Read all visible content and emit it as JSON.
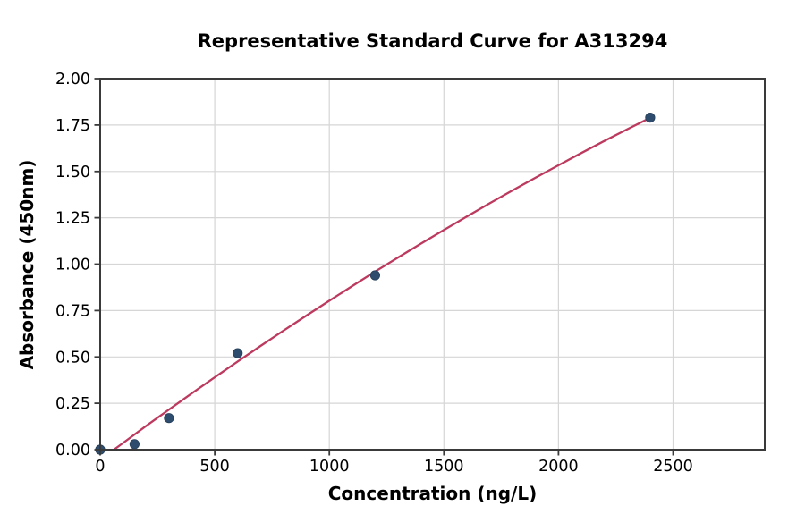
{
  "chart_data": {
    "type": "scatter",
    "title": "Representative Standard Curve for A313294",
    "xlabel": "Concentration (ng/L)",
    "ylabel": "Absorbance (450nm)",
    "xlim": [
      0,
      2900
    ],
    "ylim": [
      0,
      2.0
    ],
    "grid": true,
    "legend": "none",
    "x_ticks": {
      "values": [
        0,
        500,
        1000,
        1500,
        2000,
        2500
      ],
      "labels": [
        "0",
        "500",
        "1000",
        "1500",
        "2000",
        "2500"
      ]
    },
    "y_ticks": {
      "values": [
        0,
        0.25,
        0.5,
        0.75,
        1.0,
        1.25,
        1.5,
        1.75,
        2.0
      ],
      "labels": [
        "0.00",
        "0.25",
        "0.50",
        "0.75",
        "1.00",
        "1.25",
        "1.50",
        "1.75",
        "2.00"
      ]
    },
    "series": [
      {
        "name": "standard-points",
        "type": "scatter",
        "x": [
          0,
          150,
          300,
          600,
          1200,
          2400
        ],
        "y": [
          0.0,
          0.03,
          0.17,
          0.52,
          0.94,
          1.79
        ],
        "color": "#2e4d6e",
        "edge_color": "#263f59",
        "marker": "circle",
        "marker_radius": 5.2
      },
      {
        "name": "fit-curve",
        "type": "line",
        "x": [
          60,
          100,
          200,
          300,
          400,
          500,
          600,
          700,
          800,
          900,
          1000,
          1100,
          1200,
          1300,
          1400,
          1500,
          1600,
          1700,
          1800,
          1900,
          2000,
          2100,
          2200,
          2300,
          2400
        ],
        "y": [
          0.0,
          0.036,
          0.127,
          0.216,
          0.304,
          0.39,
          0.475,
          0.559,
          0.642,
          0.723,
          0.803,
          0.882,
          0.96,
          1.036,
          1.111,
          1.184,
          1.257,
          1.328,
          1.398,
          1.466,
          1.533,
          1.599,
          1.664,
          1.727,
          1.789
        ],
        "color": "#bd3a5f",
        "line_width": 2.3
      }
    ],
    "colors": {
      "background": "#ffffff",
      "grid": "#d6d6d6",
      "spine": "#3a3a3a",
      "text": "#000000"
    }
  }
}
